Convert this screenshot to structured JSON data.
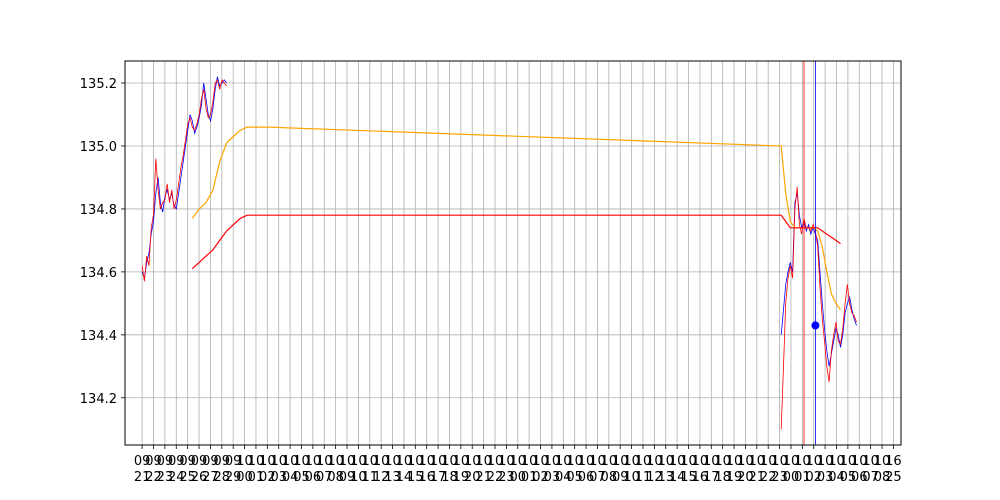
{
  "chart_data": {
    "type": "line",
    "title": "",
    "xlabel": "",
    "ylabel": "",
    "ylim": [
      134.05,
      135.27
    ],
    "yticks": [
      134.2,
      134.4,
      134.6,
      134.8,
      135.0,
      135.2
    ],
    "ytick_labels": [
      "134.2",
      "134.4",
      "134.6",
      "134.8",
      "135.0",
      "135.2"
    ],
    "grid": true,
    "legend": "none",
    "xtick_labels": [
      "09",
      "09",
      "09",
      "09",
      "09",
      "09",
      "09",
      "09",
      "09",
      "10",
      "10",
      "10",
      "10",
      "10",
      "10",
      "10",
      "10",
      "10",
      "10",
      "10",
      "10",
      "10",
      "10",
      "10",
      "10",
      "10",
      "10",
      "10",
      "10",
      "10",
      "10",
      "10",
      "10",
      "10",
      "10",
      "10",
      "10",
      "10",
      "10",
      "10",
      "10",
      "10",
      "10",
      "10",
      "10",
      "10",
      "10",
      "10",
      "10",
      "10",
      "10",
      "10",
      "10",
      "10",
      "10",
      "10",
      "10",
      "10",
      "10",
      "10",
      "10",
      "10",
      "10",
      "10",
      "10",
      "10",
      "16"
    ],
    "xtick_sublabels": [
      "21",
      "22",
      "23",
      "24",
      "25",
      "26",
      "27",
      "28",
      "29",
      "00",
      "01",
      "02",
      "03",
      "04",
      "05",
      "06",
      "07",
      "08",
      "09",
      "10",
      "11",
      "12",
      "13",
      "14",
      "15",
      "16",
      "17",
      "18",
      "19",
      "20",
      "21",
      "22",
      "23",
      "00",
      "01",
      "02",
      "03",
      "04",
      "05",
      "06",
      "07",
      "08",
      "09",
      "10",
      "11",
      "12",
      "13",
      "14",
      "15",
      "16",
      "17",
      "18",
      "19",
      "20",
      "21",
      "22",
      "23",
      "00",
      "01",
      "02",
      "03",
      "04",
      "05",
      "06",
      "07",
      "08",
      "25"
    ],
    "series": [
      {
        "color": "#0000ff",
        "x": [
          0.0,
          0.2,
          0.4,
          0.6,
          0.8,
          1.0,
          1.2,
          1.4,
          1.6,
          1.8,
          2.0,
          2.2,
          2.4,
          2.6,
          2.8,
          3.0,
          3.2,
          3.4,
          3.6,
          3.8,
          4.0,
          4.2,
          4.4,
          4.6,
          4.8,
          5.0,
          5.2,
          5.4,
          5.6,
          5.8,
          6.0,
          6.2,
          6.4,
          6.6,
          6.8,
          7.0,
          7.2,
          7.4,
          56.0,
          56.2,
          56.4,
          56.6,
          56.8,
          57.0,
          57.2,
          57.4,
          57.6,
          57.8,
          58.0,
          58.2,
          58.4,
          58.6,
          58.8,
          59.0,
          59.2,
          59.4,
          59.6,
          59.8,
          60.0,
          60.2,
          60.4,
          60.6,
          60.8,
          61.0,
          61.2,
          61.4,
          61.6,
          61.8,
          62.0,
          62.2,
          62.4,
          62.6
        ],
        "y": [
          134.6,
          134.58,
          134.63,
          134.66,
          134.72,
          134.76,
          134.85,
          134.9,
          134.82,
          134.79,
          134.84,
          134.86,
          134.83,
          134.85,
          134.81,
          134.8,
          134.85,
          134.9,
          134.95,
          135.0,
          135.05,
          135.1,
          135.08,
          135.04,
          135.06,
          135.09,
          135.13,
          135.2,
          135.15,
          135.1,
          135.08,
          135.12,
          135.18,
          135.22,
          135.19,
          135.2,
          135.21,
          135.2,
          134.4,
          134.48,
          134.56,
          134.6,
          134.63,
          134.6,
          134.82,
          134.85,
          134.78,
          134.74,
          134.76,
          134.73,
          134.75,
          134.72,
          134.74,
          134.72,
          134.7,
          134.6,
          134.5,
          134.42,
          134.35,
          134.3,
          134.34,
          134.38,
          134.42,
          134.4,
          134.36,
          134.4,
          134.47,
          134.5,
          134.52,
          134.48,
          134.45,
          134.43
        ]
      },
      {
        "color": "#ff0000",
        "x": [
          0.0,
          0.2,
          0.4,
          0.6,
          0.8,
          1.0,
          1.2,
          1.4,
          1.6,
          1.8,
          2.0,
          2.2,
          2.4,
          2.6,
          2.8,
          3.0,
          3.2,
          3.4,
          3.6,
          3.8,
          4.0,
          4.2,
          4.4,
          4.6,
          4.8,
          5.0,
          5.2,
          5.4,
          5.6,
          5.8,
          6.0,
          6.2,
          6.4,
          6.6,
          6.8,
          7.0,
          7.2,
          7.4,
          56.0,
          56.2,
          56.4,
          56.6,
          56.8,
          57.0,
          57.2,
          57.4,
          57.6,
          57.8,
          58.0,
          58.2,
          58.4,
          58.6,
          58.8,
          59.0,
          59.2,
          59.4,
          59.6,
          59.8,
          60.0,
          60.2,
          60.4,
          60.6,
          60.8,
          61.0,
          61.2,
          61.4,
          61.6,
          61.8,
          62.0,
          62.2,
          62.4,
          62.6
        ],
        "y": [
          134.62,
          134.57,
          134.65,
          134.62,
          134.74,
          134.78,
          134.96,
          134.86,
          134.8,
          134.82,
          134.83,
          134.88,
          134.82,
          134.86,
          134.8,
          134.83,
          134.88,
          134.93,
          134.97,
          135.02,
          135.07,
          135.09,
          135.06,
          135.05,
          135.07,
          135.1,
          135.15,
          135.18,
          135.12,
          135.09,
          135.1,
          135.14,
          135.2,
          135.21,
          135.18,
          135.21,
          135.2,
          135.19,
          134.1,
          134.3,
          134.5,
          134.58,
          134.62,
          134.58,
          134.8,
          134.87,
          134.75,
          134.72,
          134.77,
          134.74,
          134.74,
          134.73,
          134.75,
          134.73,
          134.68,
          134.55,
          134.45,
          134.38,
          134.3,
          134.25,
          134.35,
          134.4,
          134.44,
          134.38,
          134.37,
          134.42,
          134.5,
          134.56,
          134.5,
          134.47,
          134.46,
          134.44
        ]
      },
      {
        "color": "#ffa500",
        "x": [
          4.4,
          5.0,
          5.6,
          6.2,
          6.8,
          7.4,
          8.0,
          8.6,
          9.2,
          9.8,
          10.4,
          11.0,
          56.0,
          56.4,
          56.8,
          57.2,
          57.6,
          58.0,
          58.4,
          58.8,
          59.2,
          59.6,
          60.0,
          60.4,
          60.8,
          61.2
        ],
        "y": [
          134.77,
          134.8,
          134.82,
          134.86,
          134.95,
          135.01,
          135.03,
          135.05,
          135.06,
          135.06,
          135.06,
          135.06,
          135.0,
          134.85,
          134.76,
          134.74,
          134.74,
          134.74,
          134.74,
          134.74,
          134.73,
          134.68,
          134.6,
          134.53,
          134.5,
          134.48
        ]
      },
      {
        "color": "#ff0000",
        "x": [
          4.4,
          5.0,
          5.6,
          6.2,
          6.8,
          7.4,
          8.0,
          8.6,
          9.2,
          9.8,
          10.4,
          11.0,
          56.0,
          56.4,
          56.8,
          57.2,
          57.6,
          58.0,
          58.4,
          58.8,
          59.2,
          59.6,
          60.0,
          60.4,
          60.8,
          61.2
        ],
        "y": [
          134.61,
          134.63,
          134.65,
          134.67,
          134.7,
          134.73,
          134.75,
          134.77,
          134.78,
          134.78,
          134.78,
          134.78,
          134.78,
          134.76,
          134.74,
          134.74,
          134.74,
          134.74,
          134.74,
          134.74,
          134.74,
          134.73,
          134.72,
          134.71,
          134.7,
          134.69
        ]
      }
    ],
    "vlines": [
      {
        "x": 58.0,
        "color": "#ff0000"
      },
      {
        "x": 59.0,
        "color": "#0000ff"
      }
    ],
    "markers": [
      {
        "x": 59.0,
        "y": 134.43,
        "color": "#0000ff"
      }
    ]
  }
}
